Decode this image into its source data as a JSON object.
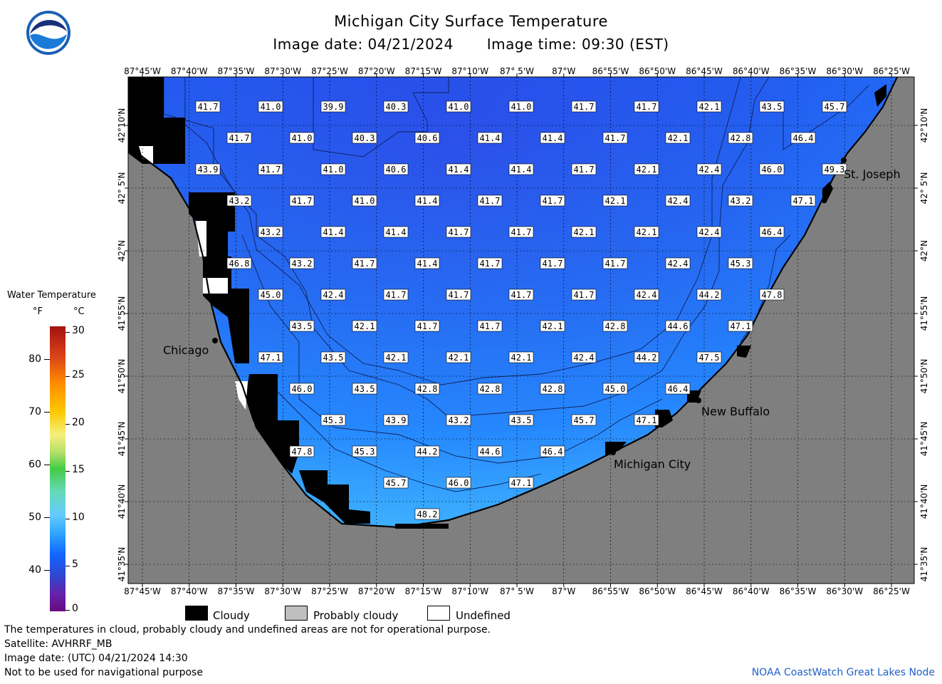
{
  "header": {
    "title": "Michigan City Surface Temperature",
    "image_date": "Image date: 04/21/2024",
    "image_time": "Image time: 09:30 (EST)"
  },
  "map": {
    "lon_labels": [
      "87°45'W",
      "87°40'W",
      "87°35'W",
      "87°30'W",
      "87°25'W",
      "87°20'W",
      "87°15'W",
      "87°10'W",
      "87° 5'W",
      "87°W",
      "86°55'W",
      "86°50'W",
      "86°45'W",
      "86°40'W",
      "86°35'W",
      "86°30'W",
      "86°25'W"
    ],
    "lat_labels": [
      "42°10'N",
      "42° 5'N",
      "42°N",
      "41°55'N",
      "41°50'N",
      "41°45'N",
      "41°40'N",
      "41°35'N"
    ],
    "cities": [
      {
        "name": "St. Joseph"
      },
      {
        "name": "Chicago"
      },
      {
        "name": "New Buffalo"
      },
      {
        "name": "Michigan City"
      }
    ],
    "temperature_rows": [
      [
        "41.7",
        "41.0",
        "39.9",
        "40.3",
        "41.0",
        "41.0",
        "41.7",
        "41.7",
        "42.1",
        "43.5",
        "45.7"
      ],
      [
        "41.7",
        "41.0",
        "40.3",
        "40.6",
        "41.4",
        "41.4",
        "41.7",
        "42.1",
        "42.8",
        "46.4"
      ],
      [
        "43.9",
        "41.7",
        "41.0",
        "40.6",
        "41.4",
        "41.4",
        "41.7",
        "42.1",
        "42.4",
        "46.0",
        "49.3"
      ],
      [
        "43.2",
        "41.7",
        "41.0",
        "41.4",
        "41.7",
        "41.7",
        "42.1",
        "42.4",
        "43.2",
        "47.1"
      ],
      [
        "43.2",
        "41.4",
        "41.4",
        "41.7",
        "41.7",
        "42.1",
        "42.1",
        "42.4",
        "46.4"
      ],
      [
        "46.8",
        "43.2",
        "41.7",
        "41.4",
        "41.7",
        "41.7",
        "41.7",
        "42.4",
        "45.3"
      ],
      [
        "45.0",
        "42.4",
        "41.7",
        "41.7",
        "41.7",
        "41.7",
        "42.4",
        "44.2",
        "47.8"
      ],
      [
        "43.5",
        "42.1",
        "41.7",
        "41.7",
        "42.1",
        "42.8",
        "44.6",
        "47.1"
      ],
      [
        "47.1",
        "43.5",
        "42.1",
        "42.1",
        "42.1",
        "42.4",
        "44.2",
        "47.5"
      ],
      [
        "46.0",
        "43.5",
        "42.8",
        "42.8",
        "42.8",
        "45.0",
        "46.4"
      ],
      [
        "45.3",
        "43.9",
        "43.2",
        "43.5",
        "45.7",
        "47.1"
      ],
      [
        "47.8",
        "45.3",
        "44.2",
        "44.6",
        "46.4"
      ],
      [
        "45.7",
        "46.0",
        "47.1"
      ],
      [
        "48.2"
      ]
    ],
    "colors": {
      "land": "#7f7f7f",
      "water_deep": "#2255ee",
      "water_mid": "#1a7aff",
      "water_warm": "#3aa0ff",
      "cloud": "#000000"
    }
  },
  "legend": {
    "title": "Water Temperature",
    "unit_f": "°F",
    "unit_c": "°C",
    "f_ticks": [
      "80",
      "70",
      "60",
      "50",
      "40"
    ],
    "c_ticks": [
      "30",
      "25",
      "20",
      "15",
      "10",
      "5",
      "0"
    ]
  },
  "key": {
    "cloudy": "Cloudy",
    "probably_cloudy": "Probably cloudy",
    "undefined": "Undefined"
  },
  "footer": {
    "line1": "The temperatures in cloud, probably cloudy and undefined areas are not for operational purpose.",
    "line2": "Satellite: AVHRRF_MB",
    "line3": "Image date: (UTC) 04/21/2024  14:30",
    "line4": "Not to be used for navigational purpose",
    "credit": "NOAA CoastWatch Great Lakes Node"
  }
}
